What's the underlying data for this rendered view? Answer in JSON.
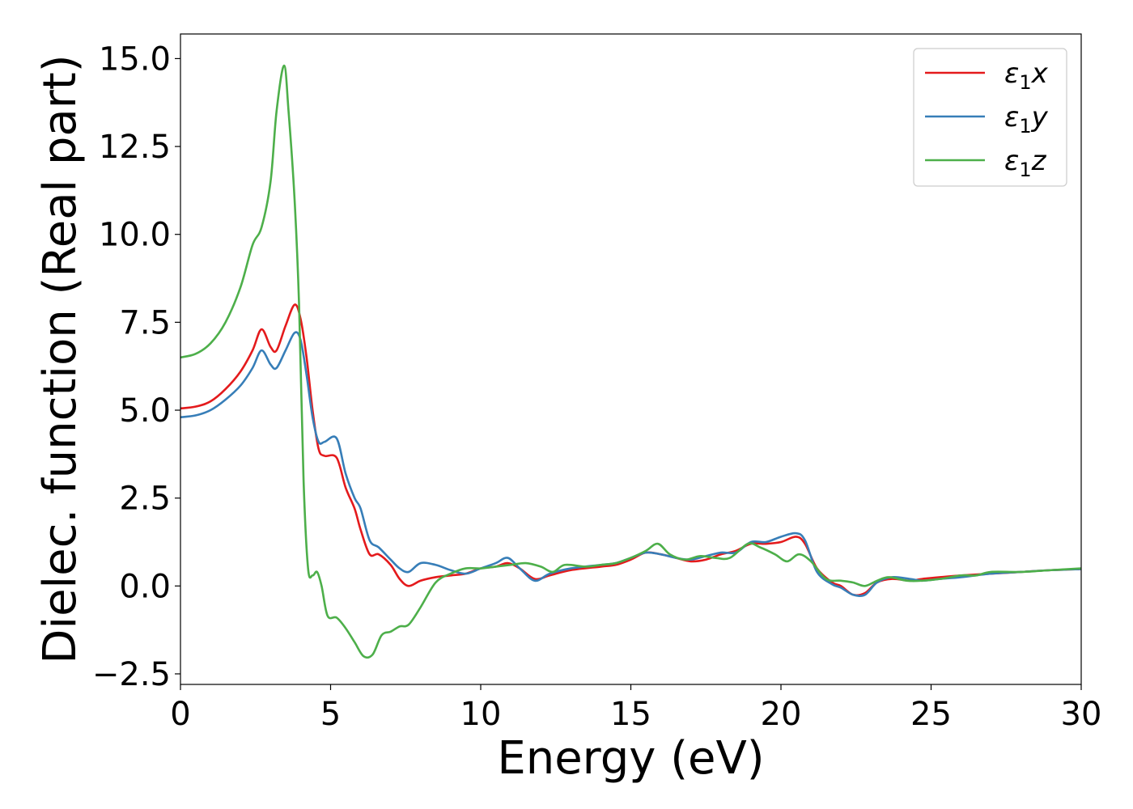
{
  "chart_data": {
    "type": "line",
    "title": "",
    "xlabel": "Energy (eV)",
    "ylabel": "Dielec. function (Real part)",
    "xlim": [
      0,
      30
    ],
    "ylim": [
      -2.8,
      15.7
    ],
    "xticks": [
      0,
      5,
      10,
      15,
      20,
      25,
      30
    ],
    "xtick_labels": [
      "0",
      "5",
      "10",
      "15",
      "20",
      "25",
      "30"
    ],
    "yticks": [
      -2.5,
      0.0,
      2.5,
      5.0,
      7.5,
      10.0,
      12.5,
      15.0
    ],
    "ytick_labels": [
      "−2.5",
      "0.0",
      "2.5",
      "5.0",
      "7.5",
      "10.0",
      "12.5",
      "15.0"
    ],
    "grid": false,
    "legend_position": "top-right",
    "series": [
      {
        "name": "ε1x",
        "base": "ε",
        "sub": "1",
        "var": "x",
        "color": "#e41a1c",
        "points": [
          [
            0,
            5.05
          ],
          [
            0.5,
            5.1
          ],
          [
            1.0,
            5.25
          ],
          [
            1.5,
            5.6
          ],
          [
            2.0,
            6.1
          ],
          [
            2.4,
            6.7
          ],
          [
            2.7,
            7.3
          ],
          [
            3.0,
            6.8
          ],
          [
            3.2,
            6.7
          ],
          [
            3.5,
            7.4
          ],
          [
            3.8,
            8.0
          ],
          [
            4.0,
            7.6
          ],
          [
            4.2,
            6.5
          ],
          [
            4.4,
            5.0
          ],
          [
            4.6,
            3.9
          ],
          [
            4.8,
            3.7
          ],
          [
            5.2,
            3.65
          ],
          [
            5.5,
            2.8
          ],
          [
            5.8,
            2.2
          ],
          [
            6.0,
            1.6
          ],
          [
            6.3,
            0.9
          ],
          [
            6.6,
            0.9
          ],
          [
            7.0,
            0.6
          ],
          [
            7.3,
            0.2
          ],
          [
            7.6,
            0.0
          ],
          [
            8.0,
            0.15
          ],
          [
            8.5,
            0.25
          ],
          [
            9.0,
            0.3
          ],
          [
            9.5,
            0.35
          ],
          [
            10.0,
            0.5
          ],
          [
            10.5,
            0.55
          ],
          [
            10.9,
            0.65
          ],
          [
            11.3,
            0.5
          ],
          [
            11.8,
            0.2
          ],
          [
            12.3,
            0.3
          ],
          [
            13.0,
            0.45
          ],
          [
            14.0,
            0.55
          ],
          [
            14.5,
            0.6
          ],
          [
            15.0,
            0.75
          ],
          [
            15.5,
            0.95
          ],
          [
            16.0,
            0.9
          ],
          [
            16.5,
            0.8
          ],
          [
            17.0,
            0.7
          ],
          [
            17.5,
            0.75
          ],
          [
            18.0,
            0.9
          ],
          [
            18.5,
            1.0
          ],
          [
            19.0,
            1.2
          ],
          [
            19.5,
            1.2
          ],
          [
            20.0,
            1.25
          ],
          [
            20.5,
            1.4
          ],
          [
            20.8,
            1.2
          ],
          [
            21.2,
            0.5
          ],
          [
            21.7,
            0.1
          ],
          [
            22.0,
            0.0
          ],
          [
            22.4,
            -0.25
          ],
          [
            22.8,
            -0.2
          ],
          [
            23.2,
            0.1
          ],
          [
            23.7,
            0.2
          ],
          [
            24.3,
            0.15
          ],
          [
            24.7,
            0.2
          ],
          [
            25.3,
            0.25
          ],
          [
            26.0,
            0.3
          ],
          [
            27.0,
            0.35
          ],
          [
            28.0,
            0.4
          ],
          [
            29.0,
            0.45
          ],
          [
            30.0,
            0.48
          ]
        ]
      },
      {
        "name": "ε1y",
        "base": "ε",
        "sub": "1",
        "var": "y",
        "color": "#377eb8",
        "points": [
          [
            0,
            4.8
          ],
          [
            0.5,
            4.85
          ],
          [
            1.0,
            5.0
          ],
          [
            1.5,
            5.3
          ],
          [
            2.0,
            5.7
          ],
          [
            2.4,
            6.2
          ],
          [
            2.7,
            6.7
          ],
          [
            3.0,
            6.3
          ],
          [
            3.2,
            6.2
          ],
          [
            3.5,
            6.7
          ],
          [
            3.8,
            7.2
          ],
          [
            4.0,
            7.0
          ],
          [
            4.2,
            6.0
          ],
          [
            4.4,
            4.8
          ],
          [
            4.6,
            4.1
          ],
          [
            4.8,
            4.1
          ],
          [
            5.2,
            4.2
          ],
          [
            5.5,
            3.2
          ],
          [
            5.8,
            2.5
          ],
          [
            6.0,
            2.2
          ],
          [
            6.3,
            1.3
          ],
          [
            6.6,
            1.1
          ],
          [
            7.0,
            0.75
          ],
          [
            7.3,
            0.5
          ],
          [
            7.6,
            0.4
          ],
          [
            8.0,
            0.65
          ],
          [
            8.5,
            0.6
          ],
          [
            9.0,
            0.45
          ],
          [
            9.5,
            0.35
          ],
          [
            10.0,
            0.5
          ],
          [
            10.5,
            0.65
          ],
          [
            10.9,
            0.8
          ],
          [
            11.3,
            0.5
          ],
          [
            11.8,
            0.15
          ],
          [
            12.3,
            0.35
          ],
          [
            13.0,
            0.5
          ],
          [
            14.0,
            0.6
          ],
          [
            14.5,
            0.65
          ],
          [
            15.0,
            0.8
          ],
          [
            15.5,
            0.95
          ],
          [
            16.0,
            0.9
          ],
          [
            16.5,
            0.8
          ],
          [
            17.0,
            0.75
          ],
          [
            17.5,
            0.85
          ],
          [
            18.0,
            0.95
          ],
          [
            18.5,
            0.95
          ],
          [
            19.0,
            1.25
          ],
          [
            19.5,
            1.25
          ],
          [
            20.0,
            1.4
          ],
          [
            20.5,
            1.5
          ],
          [
            20.8,
            1.3
          ],
          [
            21.2,
            0.4
          ],
          [
            21.7,
            0.05
          ],
          [
            22.0,
            -0.05
          ],
          [
            22.4,
            -0.25
          ],
          [
            22.8,
            -0.25
          ],
          [
            23.2,
            0.1
          ],
          [
            23.7,
            0.25
          ],
          [
            24.3,
            0.2
          ],
          [
            24.7,
            0.15
          ],
          [
            25.3,
            0.2
          ],
          [
            26.0,
            0.25
          ],
          [
            27.0,
            0.35
          ],
          [
            28.0,
            0.4
          ],
          [
            29.0,
            0.45
          ],
          [
            30.0,
            0.48
          ]
        ]
      },
      {
        "name": "ε1z",
        "base": "ε",
        "sub": "1",
        "var": "z",
        "color": "#4daf4a",
        "points": [
          [
            0,
            6.5
          ],
          [
            0.5,
            6.6
          ],
          [
            1.0,
            6.9
          ],
          [
            1.5,
            7.5
          ],
          [
            2.0,
            8.5
          ],
          [
            2.4,
            9.7
          ],
          [
            2.7,
            10.2
          ],
          [
            3.0,
            11.5
          ],
          [
            3.2,
            13.5
          ],
          [
            3.45,
            14.8
          ],
          [
            3.6,
            13.5
          ],
          [
            3.8,
            11.0
          ],
          [
            3.95,
            8.0
          ],
          [
            4.1,
            3.0
          ],
          [
            4.25,
            0.5
          ],
          [
            4.4,
            0.3
          ],
          [
            4.55,
            0.4
          ],
          [
            4.7,
            0.0
          ],
          [
            4.9,
            -0.85
          ],
          [
            5.2,
            -0.9
          ],
          [
            5.5,
            -1.2
          ],
          [
            5.8,
            -1.6
          ],
          [
            6.1,
            -2.0
          ],
          [
            6.4,
            -1.95
          ],
          [
            6.7,
            -1.4
          ],
          [
            7.0,
            -1.3
          ],
          [
            7.3,
            -1.15
          ],
          [
            7.6,
            -1.1
          ],
          [
            8.0,
            -0.6
          ],
          [
            8.5,
            0.1
          ],
          [
            9.0,
            0.35
          ],
          [
            9.5,
            0.5
          ],
          [
            10.0,
            0.5
          ],
          [
            10.5,
            0.55
          ],
          [
            11.0,
            0.6
          ],
          [
            11.5,
            0.65
          ],
          [
            12.0,
            0.55
          ],
          [
            12.4,
            0.4
          ],
          [
            12.8,
            0.6
          ],
          [
            13.5,
            0.55
          ],
          [
            14.0,
            0.6
          ],
          [
            14.5,
            0.65
          ],
          [
            15.0,
            0.8
          ],
          [
            15.5,
            1.0
          ],
          [
            15.9,
            1.2
          ],
          [
            16.3,
            0.9
          ],
          [
            16.8,
            0.75
          ],
          [
            17.3,
            0.85
          ],
          [
            17.8,
            0.8
          ],
          [
            18.3,
            0.8
          ],
          [
            18.9,
            1.2
          ],
          [
            19.3,
            1.1
          ],
          [
            19.8,
            0.9
          ],
          [
            20.2,
            0.7
          ],
          [
            20.6,
            0.9
          ],
          [
            21.0,
            0.7
          ],
          [
            21.5,
            0.2
          ],
          [
            22.0,
            0.15
          ],
          [
            22.4,
            0.1
          ],
          [
            22.8,
            0.0
          ],
          [
            23.2,
            0.15
          ],
          [
            23.6,
            0.25
          ],
          [
            24.2,
            0.15
          ],
          [
            24.7,
            0.15
          ],
          [
            25.3,
            0.2
          ],
          [
            26.0,
            0.3
          ],
          [
            26.5,
            0.3
          ],
          [
            27.0,
            0.4
          ],
          [
            28.0,
            0.4
          ],
          [
            29.0,
            0.45
          ],
          [
            30.0,
            0.5
          ]
        ]
      }
    ]
  }
}
